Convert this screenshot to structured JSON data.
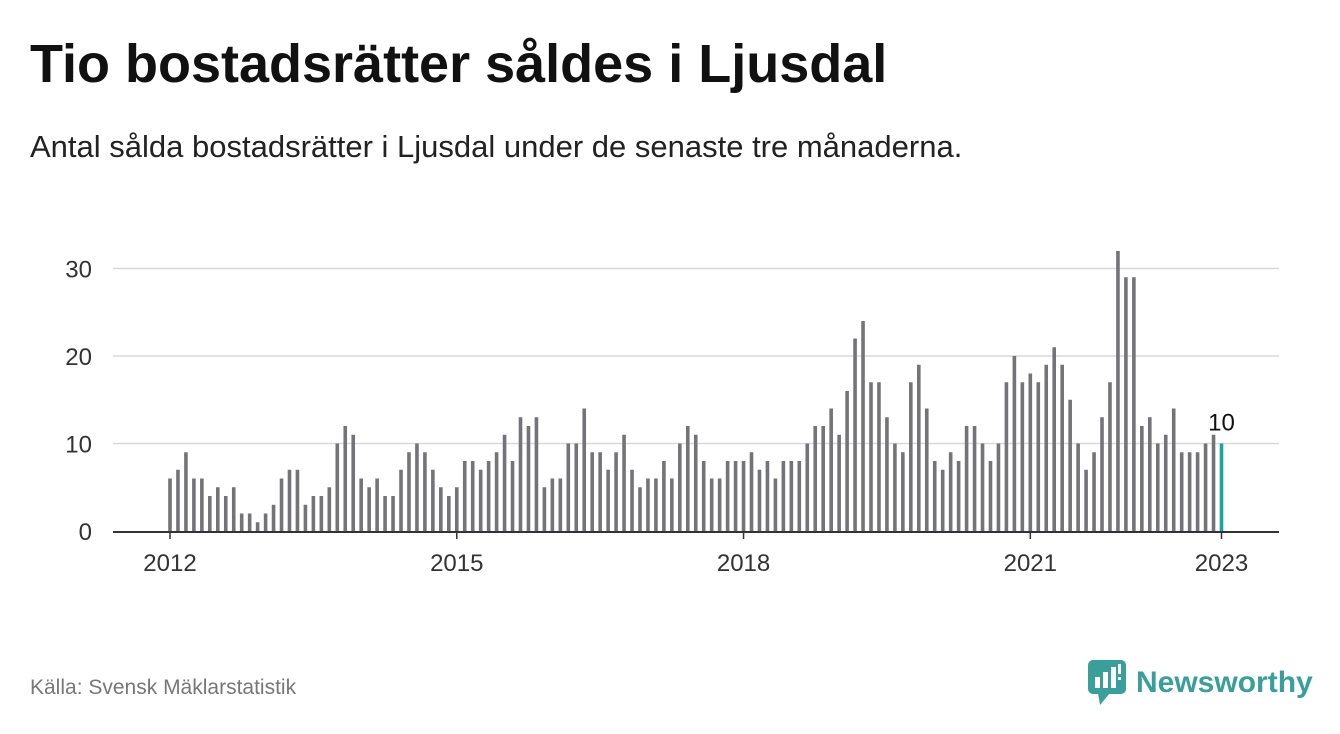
{
  "header": {
    "title": "Tio bostadsrätter såldes i Ljusdal",
    "subtitle": "Antal sålda bostadsrätter i Ljusdal under de senaste tre månaderna."
  },
  "footer": {
    "source": "Källa: Svensk Mäklarstatistik",
    "brand": "Newsworthy",
    "brand_icon": "bar-chart-speech-icon"
  },
  "colors": {
    "bar": "#737378",
    "highlight": "#1ba39c",
    "grid": "#d9d9d9",
    "axis": "#333333",
    "brand": "#3a9e9a"
  },
  "chart_data": {
    "type": "bar",
    "title": "Tio bostadsrätter såldes i Ljusdal",
    "subtitle": "Antal sålda bostadsrätter i Ljusdal under de senaste tre månaderna.",
    "xlabel": "",
    "ylabel": "",
    "x_ticks": [
      "2012",
      "2015",
      "2018",
      "2021",
      "2023"
    ],
    "y_ticks": [
      0,
      10,
      20,
      30
    ],
    "ylim": [
      0,
      33
    ],
    "grid": true,
    "annotation": {
      "text": "10",
      "target": "last"
    },
    "values": [
      6,
      7,
      9,
      6,
      6,
      4,
      5,
      4,
      5,
      2,
      2,
      1,
      2,
      3,
      6,
      7,
      7,
      3,
      4,
      4,
      5,
      10,
      12,
      11,
      6,
      5,
      6,
      4,
      4,
      7,
      9,
      10,
      9,
      7,
      5,
      4,
      5,
      8,
      8,
      7,
      8,
      9,
      11,
      8,
      13,
      12,
      13,
      5,
      6,
      6,
      10,
      10,
      14,
      9,
      9,
      7,
      9,
      11,
      7,
      5,
      6,
      6,
      8,
      6,
      10,
      12,
      11,
      8,
      6,
      6,
      8,
      8,
      8,
      9,
      7,
      8,
      6,
      8,
      8,
      8,
      10,
      12,
      12,
      14,
      11,
      16,
      22,
      24,
      17,
      17,
      13,
      10,
      9,
      17,
      19,
      14,
      8,
      7,
      9,
      8,
      12,
      12,
      10,
      8,
      10,
      17,
      20,
      17,
      18,
      17,
      19,
      21,
      19,
      15,
      10,
      7,
      9,
      13,
      17,
      32,
      29,
      29,
      12,
      13,
      10,
      11,
      14,
      9,
      9,
      9,
      10,
      11,
      10
    ]
  }
}
